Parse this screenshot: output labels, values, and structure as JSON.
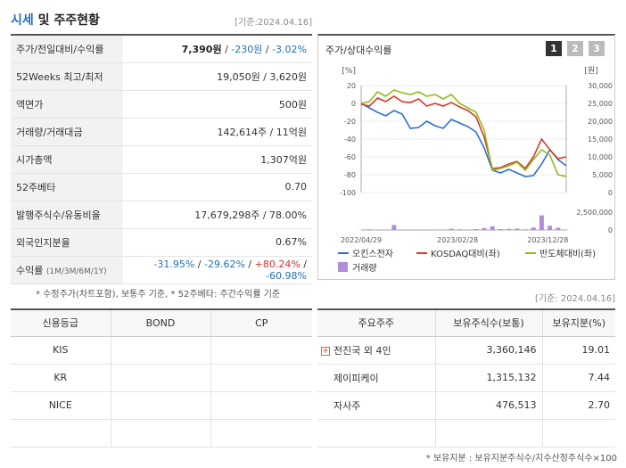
{
  "header": {
    "title_accent": "시세",
    "title_rest": " 및 주주현황",
    "date": "[기준:2024.04.16]"
  },
  "stock_rows": {
    "r0": {
      "label": "주가/전일대비/수익률",
      "price": "7,390원",
      "sep1": " / ",
      "change": "-230원",
      "sep2": " / ",
      "rate": "-3.02%"
    },
    "r1": {
      "label": "52Weeks 최고/최저",
      "value": "19,050원 / 3,620원"
    },
    "r2": {
      "label": "액면가",
      "value": "500원"
    },
    "r3": {
      "label": "거래량/거래대금",
      "value": "142,614주 / 11억원"
    },
    "r4": {
      "label": "시가총액",
      "value": "1,307억원"
    },
    "r5": {
      "label": "52주베타",
      "value": "0.70"
    },
    "r6": {
      "label": "발행주식수/유동비율",
      "value": "17,679,298주 / 78.00%"
    },
    "r7": {
      "label": "외국인지분율",
      "value": "0.67%"
    },
    "r8": {
      "label": "수익률",
      "sublabel": "(1M/3M/6M/1Y)",
      "v1": "-31.95%",
      "v2": "-29.62%",
      "v3": "+80.24%",
      "v4": "-60.98%",
      "sep": "/ "
    }
  },
  "note1": "* 수정주가(차트포함), 보통주 기준, * 52주베타: 주간수익률 기준",
  "chart_panel": {
    "title": "주가/상대수익률",
    "buttons": [
      "1",
      "2",
      "3"
    ],
    "colors": {
      "btn_active": "#333333",
      "btn_inactive": "#bbbbbb"
    }
  },
  "chart_data": {
    "type": "line",
    "x_ticks": [
      "2022/04/29",
      "2023/02/28",
      "2023/12/28"
    ],
    "left_axis": {
      "unit": "[%]",
      "ticks": [
        "20",
        "0",
        "-20",
        "-40",
        "-60",
        "-80",
        "-100"
      ],
      "ylim": [
        -100,
        20
      ]
    },
    "right_axis": {
      "unit": "[원]",
      "ticks": [
        "30,000",
        "25,000",
        "20,000",
        "15,000",
        "10,000",
        "5,000",
        "0"
      ],
      "ylim": [
        0,
        30000
      ]
    },
    "volume_axis": {
      "ticks": [
        "2,500,000",
        "0"
      ],
      "ylim": [
        0,
        2500000
      ]
    },
    "series": [
      {
        "name": "오킨스전자",
        "color": "#2e6fd0",
        "values": [
          0,
          -5,
          -10,
          -14,
          -8,
          -12,
          -28,
          -27,
          -20,
          -25,
          -28,
          -18,
          -22,
          -26,
          -32,
          -50,
          -75,
          -78,
          -74,
          -78,
          -82,
          -81,
          -68,
          -52,
          -63,
          -70
        ]
      },
      {
        "name": "KOSDAQ대비(좌)",
        "color": "#d23a2a",
        "values": [
          -1,
          -3,
          6,
          2,
          8,
          2,
          1,
          5,
          -3,
          0,
          -3,
          1,
          -4,
          -8,
          -15,
          -38,
          -73,
          -72,
          -68,
          -65,
          -73,
          -60,
          -40,
          -52,
          -62,
          -60
        ]
      },
      {
        "name": "반도체대비(좌)",
        "color": "#8fbc1f",
        "values": [
          0,
          2,
          13,
          8,
          15,
          12,
          10,
          13,
          8,
          10,
          5,
          10,
          0,
          -5,
          -10,
          -30,
          -75,
          -73,
          -70,
          -66,
          -75,
          -63,
          -52,
          -58,
          -80,
          -82
        ]
      }
    ],
    "volume_label": "거래량",
    "volume_color": "#b28ed8",
    "volume": [
      40000,
      90000,
      30000,
      60000,
      700000,
      30000,
      20000,
      50000,
      40000,
      30000,
      20000,
      180000,
      90000,
      30000,
      130000,
      280000,
      520000,
      120000,
      160000,
      200000,
      90000,
      350000,
      2050000,
      600000,
      320000,
      60000
    ]
  },
  "date2": "[기준: 2024.04.16]",
  "credit": {
    "headers": [
      "신용등급",
      "BOND",
      "CP"
    ],
    "rows": [
      {
        "agency": "KIS",
        "bond": "",
        "cp": ""
      },
      {
        "agency": "KR",
        "bond": "",
        "cp": ""
      },
      {
        "agency": "NICE",
        "bond": "",
        "cp": ""
      },
      {
        "agency": "",
        "bond": "",
        "cp": ""
      }
    ]
  },
  "holders": {
    "headers": [
      "주요주주",
      "보유주식수(보통)",
      "보유지분(%)"
    ],
    "rows": [
      {
        "name": "전진국 외 4인",
        "shares": "3,360,146",
        "ratio": "19.01",
        "expand": "+"
      },
      {
        "name": "제이피케이",
        "shares": "1,315,132",
        "ratio": "7.44"
      },
      {
        "name": "자사주",
        "shares": "476,513",
        "ratio": "2.70"
      },
      {
        "name": "",
        "shares": "",
        "ratio": ""
      }
    ]
  },
  "note2": "* 보유지분 : 보유지분주식수/지수산정주식수×100"
}
